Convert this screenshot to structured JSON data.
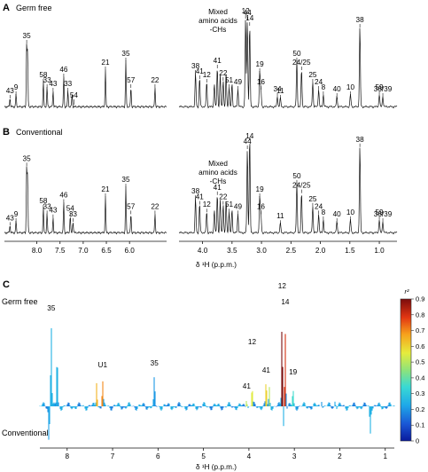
{
  "figure": {
    "panels": {
      "A": {
        "letter": "A",
        "title": "Germ free"
      },
      "B": {
        "letter": "B",
        "title": "Conventional"
      },
      "C": {
        "letter": "C",
        "top_label": "Germ free",
        "bottom_label": "Conventional"
      }
    },
    "axis_title_ab": "δ ¹H (p.p.m.)",
    "axis_title_c": "δ ¹H (p.p.m.)",
    "colorbar_label": "r²"
  },
  "chart_data": [
    {
      "type": "line",
      "panel": "A",
      "title": "Germ free",
      "xlabel": "δ ¹H (p.p.m.)",
      "segments": [
        {
          "xlim": [
            8.7,
            5.2
          ],
          "ticks": [
            "8.0",
            "7.5",
            "7.0",
            "6.5",
            "6.0"
          ]
        },
        {
          "xlim": [
            4.4,
            0.7
          ],
          "ticks": [
            "4.0",
            "3.5",
            "3.0",
            "2.5",
            "2.0",
            "1.5",
            "1.0"
          ]
        }
      ],
      "peak_labels": [
        {
          "label": "43",
          "x": 8.58
        },
        {
          "label": "9",
          "x": 8.45
        },
        {
          "label": "35",
          "x": 8.22
        },
        {
          "label": "58",
          "x": 7.86
        },
        {
          "label": "33",
          "x": 7.78
        },
        {
          "label": "43",
          "x": 7.65
        },
        {
          "label": "46",
          "x": 7.42
        },
        {
          "label": "33",
          "x": 7.33
        },
        {
          "label": "54",
          "x": 7.2
        },
        {
          "label": "21",
          "x": 6.52
        },
        {
          "label": "35",
          "x": 6.08
        },
        {
          "label": "57",
          "x": 5.97
        },
        {
          "label": "22",
          "x": 5.45
        },
        {
          "label": "38",
          "x": 4.12
        },
        {
          "label": "41",
          "x": 4.05
        },
        {
          "label": "12",
          "x": 3.93
        },
        {
          "label": "41",
          "x": 3.75
        },
        {
          "label": "22",
          "x": 3.65
        },
        {
          "label": "51",
          "x": 3.55
        },
        {
          "label": "49",
          "x": 3.4
        },
        {
          "label": "12",
          "x": 3.27
        },
        {
          "label": "44",
          "x": 3.24
        },
        {
          "label": "14",
          "x": 3.2
        },
        {
          "label": "19",
          "x": 3.03
        },
        {
          "label": "16",
          "x": 3.01
        },
        {
          "label": "34",
          "x": 2.73
        },
        {
          "label": "11",
          "x": 2.68
        },
        {
          "label": "50",
          "x": 2.4
        },
        {
          "label": "24/25",
          "x": 2.32
        },
        {
          "label": "25",
          "x": 2.13
        },
        {
          "label": "24",
          "x": 2.03
        },
        {
          "label": "8",
          "x": 1.95
        },
        {
          "label": "40",
          "x": 1.72
        },
        {
          "label": "10",
          "x": 1.49
        },
        {
          "label": "38",
          "x": 1.33
        },
        {
          "label": "59",
          "x": 1.0
        },
        {
          "label": "36/39",
          "x": 0.94
        }
      ],
      "annotation": "Mixed amino acids -CHs"
    },
    {
      "type": "line",
      "panel": "B",
      "title": "Conventional",
      "xlabel": "δ ¹H (p.p.m.)",
      "segments": [
        {
          "xlim": [
            8.7,
            5.2
          ],
          "ticks": [
            "8.0",
            "7.5",
            "7.0",
            "6.5",
            "6.0"
          ]
        },
        {
          "xlim": [
            4.4,
            0.7
          ],
          "ticks": [
            "4.0",
            "3.5",
            "3.0",
            "2.5",
            "2.0",
            "1.5",
            "1.0"
          ]
        }
      ],
      "peak_labels": [
        {
          "label": "43",
          "x": 8.58
        },
        {
          "label": "9",
          "x": 8.45
        },
        {
          "label": "35",
          "x": 8.22
        },
        {
          "label": "58",
          "x": 7.86
        },
        {
          "label": "33",
          "x": 7.78
        },
        {
          "label": "43",
          "x": 7.65
        },
        {
          "label": "46",
          "x": 7.42
        },
        {
          "label": "54",
          "x": 7.28
        },
        {
          "label": "33",
          "x": 7.22
        },
        {
          "label": "21",
          "x": 6.52
        },
        {
          "label": "35",
          "x": 6.08
        },
        {
          "label": "57",
          "x": 5.97
        },
        {
          "label": "22",
          "x": 5.45
        },
        {
          "label": "38",
          "x": 4.12
        },
        {
          "label": "41",
          "x": 4.05
        },
        {
          "label": "12",
          "x": 3.93
        },
        {
          "label": "41",
          "x": 3.75
        },
        {
          "label": "22",
          "x": 3.65
        },
        {
          "label": "51",
          "x": 3.55
        },
        {
          "label": "49",
          "x": 3.4
        },
        {
          "label": "44",
          "x": 3.24
        },
        {
          "label": "14",
          "x": 3.2
        },
        {
          "label": "19",
          "x": 3.03
        },
        {
          "label": "16",
          "x": 3.01
        },
        {
          "label": "11",
          "x": 2.68
        },
        {
          "label": "50",
          "x": 2.4
        },
        {
          "label": "24/25",
          "x": 2.32
        },
        {
          "label": "25",
          "x": 2.13
        },
        {
          "label": "24",
          "x": 2.03
        },
        {
          "label": "8",
          "x": 1.95
        },
        {
          "label": "40",
          "x": 1.72
        },
        {
          "label": "10",
          "x": 1.49
        },
        {
          "label": "38",
          "x": 1.33
        },
        {
          "label": "59",
          "x": 1.0
        },
        {
          "label": "36/39",
          "x": 0.94
        }
      ],
      "annotation": "Mixed amino acids -CHs"
    },
    {
      "type": "line",
      "panel": "C",
      "xlabel": "δ ¹H (p.p.m.)",
      "xlim": [
        8.6,
        0.8
      ],
      "x_ticks": [
        "8",
        "7",
        "6",
        "5",
        "4",
        "3",
        "2",
        "1"
      ],
      "colorbar": {
        "label": "r²",
        "range": [
          0,
          0.9
        ],
        "ticks": [
          "0",
          "0.1",
          "0.2",
          "0.3",
          "0.4",
          "0.5",
          "0.6",
          "0.7",
          "0.8",
          "0.9"
        ]
      },
      "peak_labels": [
        {
          "label": "35",
          "x": 8.35
        },
        {
          "label": "U1",
          "x": 7.22
        },
        {
          "label": "35",
          "x": 6.08
        },
        {
          "label": "41",
          "x": 4.05
        },
        {
          "label": "12",
          "x": 3.93
        },
        {
          "label": "41",
          "x": 3.62
        },
        {
          "label": "12",
          "x": 3.27
        },
        {
          "label": "14",
          "x": 3.2
        },
        {
          "label": "19",
          "x": 3.03
        }
      ]
    }
  ]
}
